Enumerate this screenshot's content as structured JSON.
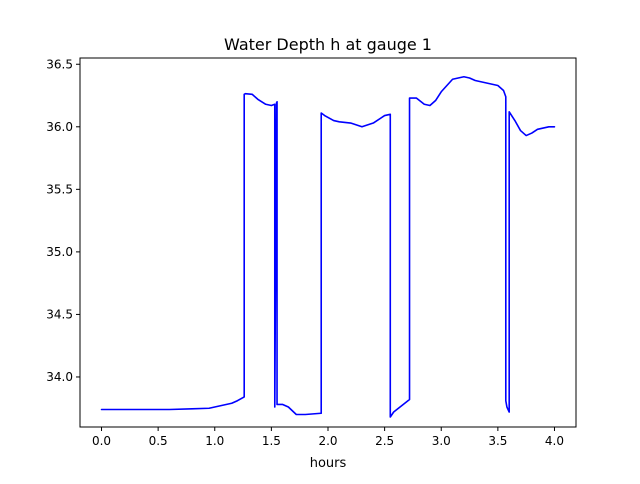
{
  "chart_data": {
    "type": "line",
    "title": "Water Depth h at gauge 1",
    "xlabel": "hours",
    "ylabel": "",
    "xlim": [
      -0.19,
      4.19
    ],
    "ylim": [
      33.6,
      36.55
    ],
    "xticks": [
      0.0,
      0.5,
      1.0,
      1.5,
      2.0,
      2.5,
      3.0,
      3.5,
      4.0
    ],
    "xtick_labels": [
      "0.0",
      "0.5",
      "1.0",
      "1.5",
      "2.0",
      "2.5",
      "3.0",
      "3.5",
      "4.0"
    ],
    "yticks": [
      34.0,
      34.5,
      35.0,
      35.5,
      36.0,
      36.5
    ],
    "ytick_labels": [
      "34.0",
      "34.5",
      "35.0",
      "35.5",
      "36.0",
      "36.5"
    ],
    "grid": false,
    "series": [
      {
        "color": "#0000ff",
        "x": [
          0.0,
          0.3,
          0.6,
          0.8,
          0.95,
          1.05,
          1.15,
          1.2,
          1.26,
          1.26,
          1.27,
          1.33,
          1.38,
          1.45,
          1.5,
          1.53,
          1.53,
          1.545,
          1.545,
          1.55,
          1.55,
          1.6,
          1.6,
          1.65,
          1.72,
          1.8,
          1.94,
          1.94,
          1.97,
          2.05,
          2.1,
          2.2,
          2.3,
          2.4,
          2.5,
          2.55,
          2.55,
          2.58,
          2.65,
          2.72,
          2.72,
          2.78,
          2.85,
          2.9,
          2.95,
          3.0,
          3.1,
          3.2,
          3.25,
          3.3,
          3.4,
          3.5,
          3.55,
          3.57,
          3.57,
          3.58,
          3.6,
          3.6,
          3.65,
          3.7,
          3.75,
          3.8,
          3.85,
          3.9,
          3.95,
          4.0
        ],
        "y": [
          33.74,
          33.74,
          33.74,
          33.745,
          33.75,
          33.77,
          33.79,
          33.81,
          33.84,
          36.26,
          36.265,
          36.26,
          36.22,
          36.18,
          36.17,
          36.18,
          33.76,
          36.17,
          36.19,
          36.2,
          33.78,
          33.78,
          33.78,
          33.76,
          33.7,
          33.7,
          33.71,
          36.11,
          36.09,
          36.05,
          36.04,
          36.03,
          36.0,
          36.03,
          36.09,
          36.1,
          33.68,
          33.72,
          33.77,
          33.82,
          36.23,
          36.23,
          36.18,
          36.17,
          36.21,
          36.28,
          36.38,
          36.4,
          36.39,
          36.37,
          36.35,
          36.33,
          36.29,
          36.24,
          33.81,
          33.76,
          33.72,
          36.12,
          36.05,
          35.97,
          35.93,
          35.95,
          35.98,
          35.99,
          36.0,
          36.0
        ]
      }
    ]
  }
}
